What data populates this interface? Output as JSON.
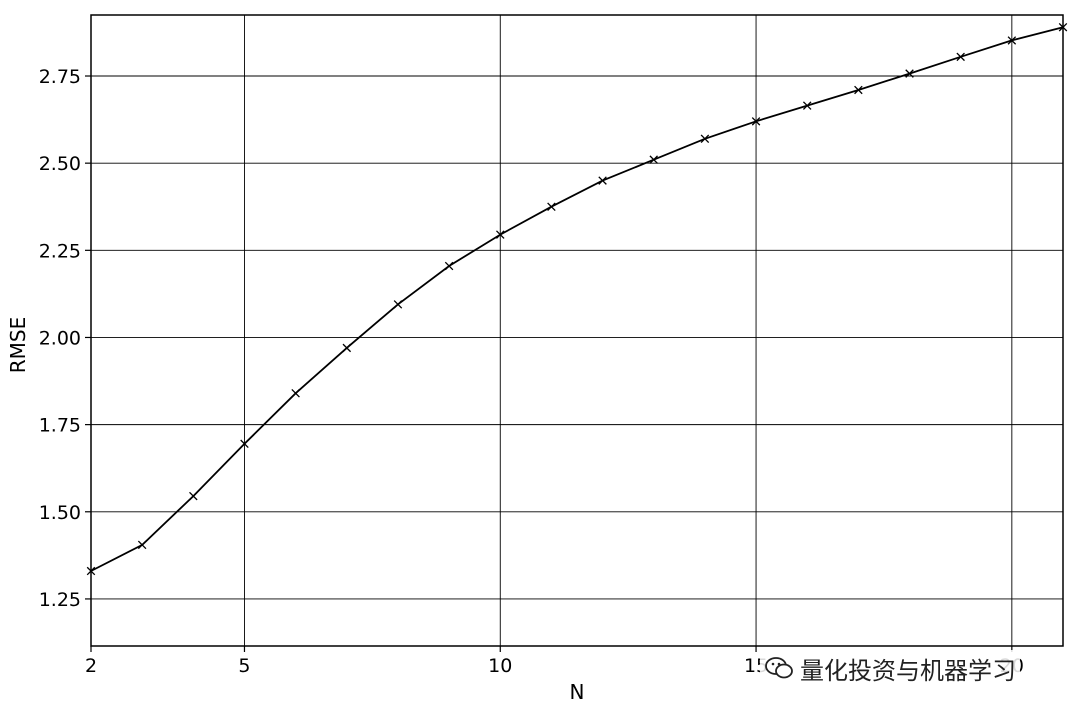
{
  "chart_data": {
    "type": "line",
    "title": "",
    "xlabel": "N",
    "ylabel": "RMSE",
    "xlim": [
      2,
      21
    ],
    "ylim": [
      1.115,
      2.925
    ],
    "x_ticks": [
      2,
      5,
      10,
      15,
      20
    ],
    "x_tick_labels": [
      "2",
      "5",
      "10",
      "15",
      "20"
    ],
    "y_ticks": [
      1.25,
      1.5,
      1.75,
      2.0,
      2.25,
      2.5,
      2.75
    ],
    "y_tick_labels": [
      "1.25",
      "1.50",
      "1.75",
      "2.00",
      "2.25",
      "2.50",
      "2.75"
    ],
    "grid": true,
    "line_color": "#000000",
    "marker": "x",
    "series": [
      {
        "x": [
          2,
          3,
          4,
          5,
          6,
          7,
          8,
          9,
          10,
          11,
          12,
          13,
          14,
          15,
          16,
          17,
          18,
          19,
          20,
          21
        ],
        "values": [
          1.33,
          1.405,
          1.545,
          1.695,
          1.84,
          1.97,
          2.095,
          2.205,
          2.295,
          2.375,
          2.45,
          2.51,
          2.57,
          2.62,
          2.665,
          2.71,
          2.757,
          2.805,
          2.852,
          2.89
        ]
      }
    ]
  },
  "watermark": {
    "text": "量化投资与机器学习",
    "icon": "wechat-icon"
  }
}
